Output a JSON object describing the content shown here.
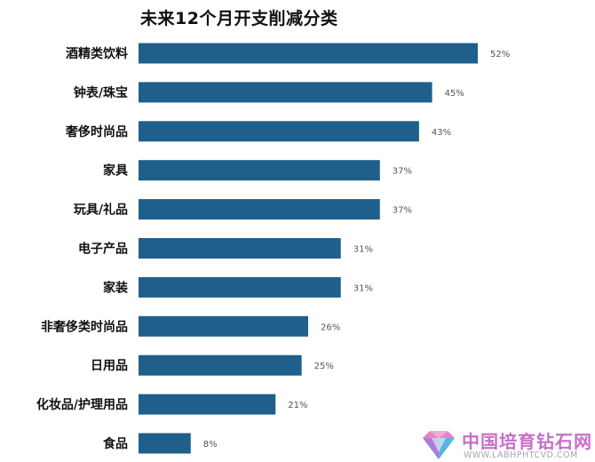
{
  "chart_data": {
    "type": "bar",
    "orientation": "horizontal",
    "title": "未来12个月开支削减分类",
    "categories": [
      "酒精类饮料",
      "钟表/珠宝",
      "奢侈时尚品",
      "家具",
      "玩具/礼品",
      "电子产品",
      "家装",
      "非奢侈类时尚品",
      "日用品",
      "化妆品/护理用品",
      "食品"
    ],
    "values": [
      52,
      45,
      43,
      37,
      37,
      31,
      31,
      26,
      25,
      21,
      8
    ],
    "value_labels": [
      "52%",
      "45%",
      "43%",
      "37%",
      "37%",
      "31%",
      "31%",
      "26%",
      "25%",
      "21%",
      "8%"
    ],
    "xlim": [
      0,
      52
    ],
    "bar_color": "#1f5f8b",
    "grid": false,
    "legend": "none"
  },
  "watermark": {
    "name": "中国培育钻石网",
    "url": "WWW.LABHPHTCVD.COM",
    "colors": {
      "text": "#c86fc8",
      "url": "#a9a3a9",
      "gem_pink": "#e46fb8",
      "gem_blue": "#4fa8e0",
      "gem_purple": "#a06fd6"
    }
  }
}
